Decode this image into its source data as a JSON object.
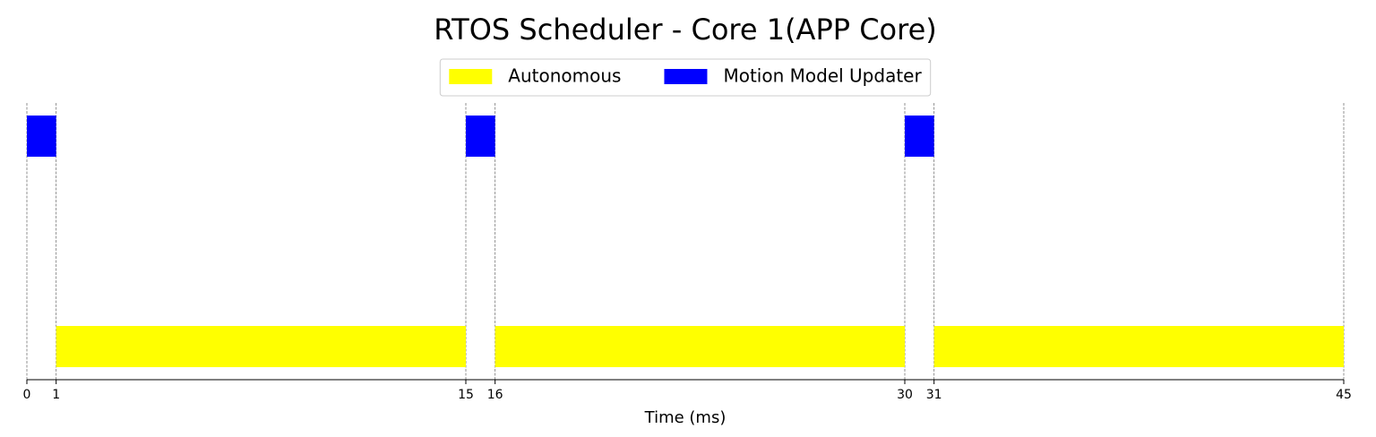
{
  "chart_data": {
    "type": "gantt",
    "title": "RTOS Scheduler - Core 1(APP Core)",
    "xlabel": "Time (ms)",
    "xlim": [
      0,
      45
    ],
    "xticks": [
      0,
      1,
      15,
      16,
      30,
      31,
      45
    ],
    "grid": true,
    "legend": "upper center",
    "series": [
      {
        "name": "Autonomous",
        "color": "#ffff00",
        "intervals": [
          [
            1,
            15
          ],
          [
            16,
            30
          ],
          [
            31,
            45
          ]
        ]
      },
      {
        "name": "Motion Model Updater",
        "color": "#0000ff",
        "intervals": [
          [
            0,
            1
          ],
          [
            15,
            16
          ],
          [
            30,
            31
          ]
        ]
      }
    ]
  }
}
